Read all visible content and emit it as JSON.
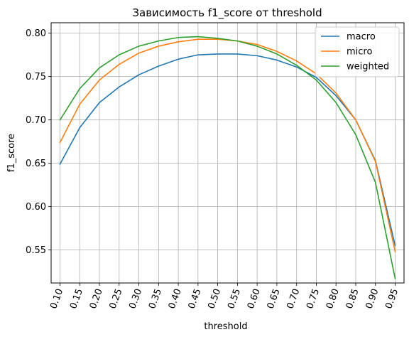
{
  "chart_data": {
    "type": "line",
    "title": "Зависимость f1_score от threshold",
    "xlabel": "threshold",
    "ylabel": "f1_score",
    "x_ticks": [
      "0.10",
      "0.15",
      "0.20",
      "0.25",
      "0.30",
      "0.35",
      "0.40",
      "0.45",
      "0.50",
      "0.55",
      "0.60",
      "0.65",
      "0.70",
      "0.75",
      "0.80",
      "0.85",
      "0.90",
      "0.95"
    ],
    "x": [
      0.1,
      0.15,
      0.2,
      0.25,
      0.3,
      0.35,
      0.4,
      0.45,
      0.5,
      0.55,
      0.6,
      0.65,
      0.7,
      0.75,
      0.8,
      0.85,
      0.9,
      0.95
    ],
    "y_ticks": [
      "0.55",
      "0.60",
      "0.65",
      "0.70",
      "0.75",
      "0.80"
    ],
    "ylim": [
      0.512,
      0.812
    ],
    "grid": true,
    "legend_position": "top-right",
    "series": [
      {
        "name": "macro",
        "color": "#1f77b4",
        "values": [
          0.649,
          0.691,
          0.72,
          0.738,
          0.752,
          0.762,
          0.77,
          0.775,
          0.776,
          0.776,
          0.774,
          0.769,
          0.761,
          0.749,
          0.728,
          0.7,
          0.653,
          0.555
        ]
      },
      {
        "name": "micro",
        "color": "#ff7f0e",
        "values": [
          0.674,
          0.718,
          0.746,
          0.764,
          0.777,
          0.785,
          0.79,
          0.793,
          0.793,
          0.791,
          0.787,
          0.779,
          0.768,
          0.753,
          0.731,
          0.7,
          0.652,
          0.548
        ]
      },
      {
        "name": "weighted",
        "color": "#2ca02c",
        "values": [
          0.7,
          0.736,
          0.76,
          0.775,
          0.785,
          0.791,
          0.795,
          0.796,
          0.794,
          0.791,
          0.785,
          0.776,
          0.763,
          0.746,
          0.72,
          0.683,
          0.628,
          0.517
        ]
      }
    ]
  }
}
